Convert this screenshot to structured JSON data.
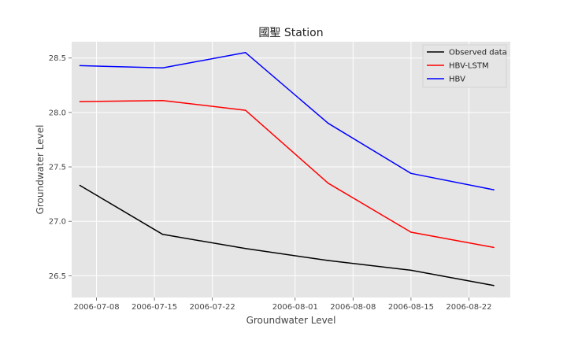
{
  "chart_data": {
    "type": "line",
    "title": "國聖 Station",
    "xlabel": "Groundwater Level",
    "ylabel": "Groundwater Level",
    "x": [
      "2006-07-06",
      "2006-07-16",
      "2006-07-26",
      "2006-08-05",
      "2006-08-15",
      "2006-08-25"
    ],
    "x_tick_labels": [
      "2006-07-08",
      "2006-07-15",
      "2006-07-22",
      "2006-08-01",
      "2006-08-08",
      "2006-08-15",
      "2006-08-22"
    ],
    "x_tick_dates": [
      "2006-07-08",
      "2006-07-15",
      "2006-07-22",
      "2006-08-01",
      "2006-08-08",
      "2006-08-15",
      "2006-08-22"
    ],
    "xlim": [
      "2006-07-05",
      "2006-08-27"
    ],
    "ylim": [
      26.3,
      28.65
    ],
    "y_ticks": [
      26.5,
      27.0,
      27.5,
      28.0,
      28.5
    ],
    "y_tick_labels": [
      "26.5",
      "27.0",
      "27.5",
      "28.0",
      "28.5"
    ],
    "grid": true,
    "legend_position": "top-right",
    "series": [
      {
        "name": "Observed data",
        "color": "#000000",
        "values": [
          27.33,
          26.88,
          26.75,
          26.64,
          26.55,
          26.41
        ]
      },
      {
        "name": "HBV-LSTM",
        "color": "#ff0000",
        "values": [
          28.1,
          28.11,
          28.02,
          27.35,
          26.9,
          26.76
        ]
      },
      {
        "name": "HBV",
        "color": "#0000ff",
        "values": [
          28.43,
          28.41,
          28.55,
          27.9,
          27.44,
          27.29
        ]
      }
    ]
  }
}
